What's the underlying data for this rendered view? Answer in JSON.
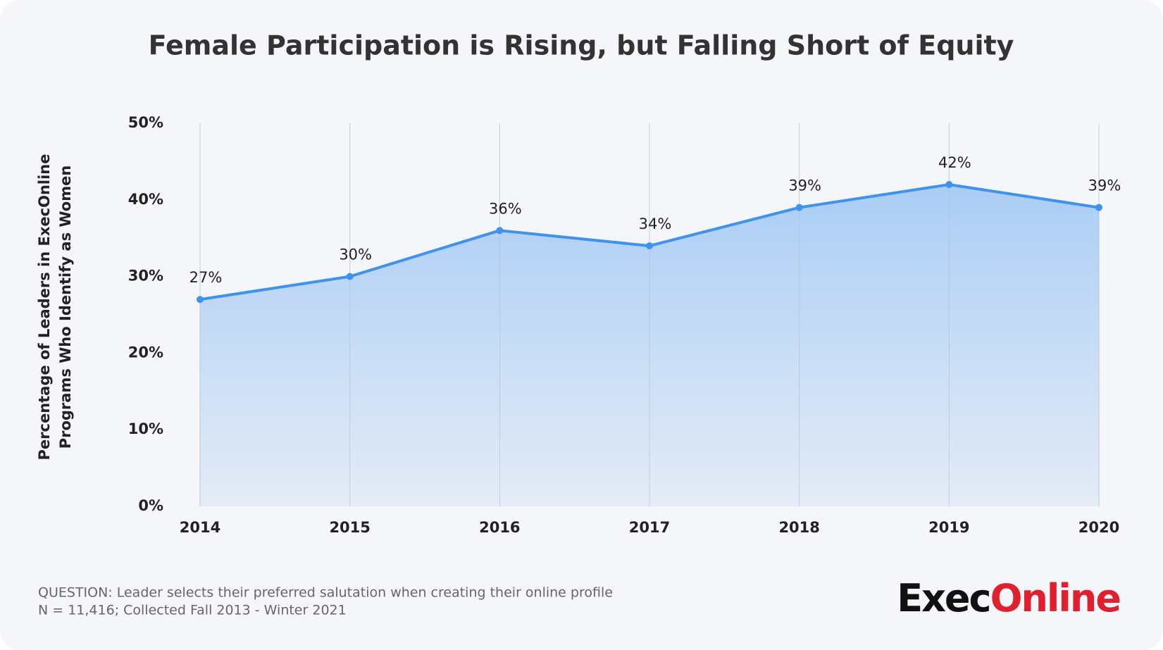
{
  "chart_data": {
    "type": "area",
    "title": "Female Participation is Rising, but Falling Short of Equity",
    "y_label_lines": [
      "Percentage of Leaders in ExecOnline",
      "Programs Who Identify as Women"
    ],
    "categories": [
      "2014",
      "2015",
      "2016",
      "2017",
      "2018",
      "2019",
      "2020"
    ],
    "values": [
      27,
      30,
      36,
      34,
      39,
      42,
      39
    ],
    "value_labels": [
      "27%",
      "30%",
      "36%",
      "34%",
      "39%",
      "42%",
      "39%"
    ],
    "color": "#3f93ec",
    "ylim": [
      0,
      50
    ],
    "yticks": [
      {
        "value": 0,
        "label": "0%"
      },
      {
        "value": 10,
        "label": "10%"
      },
      {
        "value": 20,
        "label": "20%"
      },
      {
        "value": 30,
        "label": "30%"
      },
      {
        "value": 40,
        "label": "40%"
      },
      {
        "value": 50,
        "label": "50%"
      }
    ],
    "grid": true
  },
  "footer": {
    "notes": [
      "QUESTION: Leader selects their preferred salutation when creating their online profile",
      "N = 11,416; Collected Fall 2013 - Winter 2021"
    ],
    "logo": [
      "Exec",
      "Online"
    ]
  }
}
